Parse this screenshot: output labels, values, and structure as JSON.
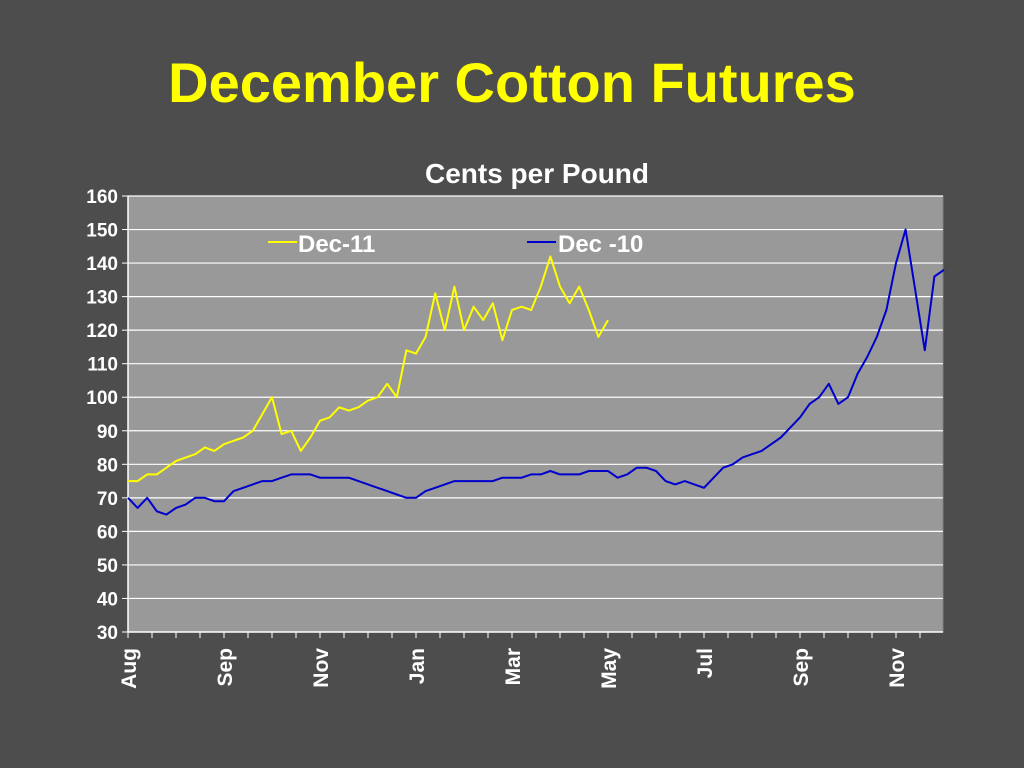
{
  "slide": {
    "title": "December Cotton Futures"
  },
  "chart_data": {
    "type": "line",
    "subtitle": "Cents per Pound",
    "ylim": [
      30,
      160
    ],
    "yticks": [
      30,
      40,
      50,
      60,
      70,
      80,
      90,
      100,
      110,
      120,
      130,
      140,
      150,
      160
    ],
    "x_tick_labels": [
      "Aug",
      "Sep",
      "Nov",
      "Jan",
      "Mar",
      "May",
      "Jul",
      "Sep",
      "Nov"
    ],
    "grid": true,
    "legend": "top",
    "colors": {
      "background": "#4d4d4d",
      "plot_area": "#999999",
      "gridline": "#ffffff",
      "title": "#ffff00",
      "dec11": "#ffff00",
      "dec10": "#0000cc"
    },
    "series": [
      {
        "name": "Dec-11",
        "x": [
          0,
          0.1,
          0.2,
          0.3,
          0.4,
          0.5,
          0.6,
          0.7,
          0.8,
          0.9,
          1.0,
          1.1,
          1.2,
          1.3,
          1.4,
          1.5,
          1.6,
          1.7,
          1.8,
          1.9,
          2.0,
          2.1,
          2.2,
          2.3,
          2.4,
          2.5,
          2.6,
          2.7,
          2.8,
          2.9,
          3.0,
          3.1,
          3.2,
          3.3,
          3.4,
          3.5,
          3.6,
          3.7,
          3.8,
          3.9,
          4.0,
          4.1,
          4.2,
          4.3,
          4.4,
          4.5,
          4.6,
          4.7,
          4.8,
          4.9,
          5.0
        ],
        "values": [
          75,
          75,
          77,
          77,
          79,
          81,
          82,
          83,
          85,
          84,
          86,
          87,
          88,
          90,
          95,
          100,
          89,
          90,
          84,
          88,
          93,
          94,
          97,
          96,
          97,
          99,
          100,
          104,
          100,
          114,
          113,
          118,
          131,
          120,
          133,
          120,
          127,
          123,
          128,
          117,
          126,
          127,
          126,
          133,
          142,
          133,
          128,
          133,
          126,
          118,
          123
        ]
      },
      {
        "name": "Dec -10",
        "x": [
          0,
          0.1,
          0.2,
          0.3,
          0.4,
          0.5,
          0.6,
          0.7,
          0.8,
          0.9,
          1.0,
          1.1,
          1.2,
          1.3,
          1.4,
          1.5,
          1.6,
          1.7,
          1.8,
          1.9,
          2.0,
          2.1,
          2.2,
          2.3,
          2.4,
          2.5,
          2.6,
          2.7,
          2.8,
          2.9,
          3.0,
          3.1,
          3.2,
          3.3,
          3.4,
          3.5,
          3.6,
          3.7,
          3.8,
          3.9,
          4.0,
          4.1,
          4.2,
          4.3,
          4.4,
          4.5,
          4.6,
          4.7,
          4.8,
          4.9,
          5.0,
          5.1,
          5.2,
          5.3,
          5.4,
          5.5,
          5.6,
          5.7,
          5.8,
          5.9,
          6.0,
          6.1,
          6.2,
          6.3,
          6.4,
          6.5,
          6.6,
          6.7,
          6.8,
          6.9,
          7.0,
          7.1,
          7.2,
          7.3,
          7.4,
          7.5,
          7.6,
          7.7,
          7.8,
          7.9,
          8.0,
          8.1,
          8.2,
          8.3,
          8.4,
          8.5
        ],
        "values": [
          70,
          67,
          70,
          66,
          65,
          67,
          68,
          70,
          70,
          69,
          69,
          72,
          73,
          74,
          75,
          75,
          76,
          77,
          77,
          77,
          76,
          76,
          76,
          76,
          75,
          74,
          73,
          72,
          71,
          70,
          70,
          72,
          73,
          74,
          75,
          75,
          75,
          75,
          75,
          76,
          76,
          76,
          77,
          77,
          78,
          77,
          77,
          77,
          78,
          78,
          78,
          76,
          77,
          79,
          79,
          78,
          75,
          74,
          75,
          74,
          73,
          76,
          79,
          80,
          82,
          83,
          84,
          86,
          88,
          91,
          94,
          98,
          100,
          104,
          98,
          100,
          107,
          112,
          118,
          126,
          140,
          150,
          132,
          114,
          136,
          138
        ]
      }
    ]
  }
}
